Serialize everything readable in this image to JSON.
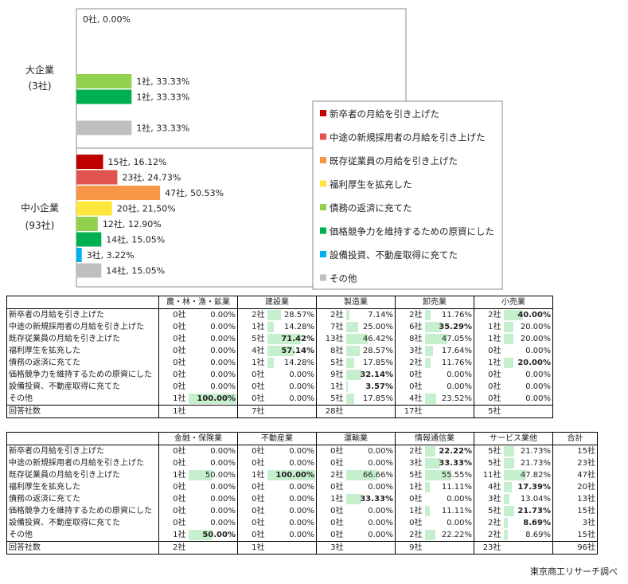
{
  "chart_data": {
    "type": "bar",
    "orientation": "horizontal",
    "series_names": [
      "新卒者の月給を引き上げた",
      "中途の新規採用者の月給を引き上げた",
      "既存従業員の月給を引き上げた",
      "福利厚生を拡充した",
      "債務の返済に充てた",
      "価格競争力を維持するための原資にした",
      "設備投資、不動産取得に充てた",
      "その他"
    ],
    "colors": [
      "#c00000",
      "#e0534e",
      "#f79646",
      "#ffe63c",
      "#92d050",
      "#00b050",
      "#00b0f0",
      "#bfbfbf"
    ],
    "legend_position": "right",
    "xlim": [
      0,
      100
    ],
    "groups": [
      {
        "name": "大企業",
        "sub": "(3社)",
        "bars": [
          {
            "value": 0,
            "label": "0社, 0.00%"
          },
          null,
          null,
          null,
          {
            "value": 33.33,
            "label": "1社, 33.33%"
          },
          {
            "value": 33.33,
            "label": "1社, 33.33%"
          },
          null,
          {
            "value": 33.33,
            "label": "1社, 33.33%"
          }
        ]
      },
      {
        "name": "中小企業",
        "sub": "(93社)",
        "bars": [
          {
            "value": 16.12,
            "label": "15社, 16.12%"
          },
          {
            "value": 24.73,
            "label": "23社, 24.73%"
          },
          {
            "value": 50.53,
            "label": "47社, 50.53%"
          },
          {
            "value": 21.5,
            "label": "20社, 21,50%"
          },
          {
            "value": 12.9,
            "label": "12社, 12.90%"
          },
          {
            "value": 15.05,
            "label": "14社, 15.05%"
          },
          {
            "value": 3.22,
            "label": "3社, 3.22%"
          },
          {
            "value": 15.05,
            "label": "14社, 15.05%"
          }
        ]
      }
    ]
  },
  "tables": [
    {
      "industries": [
        "農・林・漁・鉱業",
        "建設業",
        "製造業",
        "卸売業",
        "小売業"
      ],
      "rows": [
        {
          "label": "新卒者の月給を引き上げた",
          "cells": [
            [
              "0社",
              "0.00%"
            ],
            [
              "2社",
              "28.57%"
            ],
            [
              "2社",
              "7.14%"
            ],
            [
              "2社",
              "11.76%"
            ],
            [
              "2社",
              "40.00%"
            ]
          ]
        },
        {
          "label": "中途の新規採用者の月給を引き上げた",
          "cells": [
            [
              "0社",
              "0.00%"
            ],
            [
              "1社",
              "14.28%"
            ],
            [
              "7社",
              "25.00%"
            ],
            [
              "6社",
              "35.29%"
            ],
            [
              "1社",
              "20.00%"
            ]
          ]
        },
        {
          "label": "既存従業員の月給を引き上げた",
          "cells": [
            [
              "0社",
              "0.00%"
            ],
            [
              "5社",
              "71.42%"
            ],
            [
              "13社",
              "46.42%"
            ],
            [
              "8社",
              "47.05%"
            ],
            [
              "1社",
              "20.00%"
            ]
          ]
        },
        {
          "label": "福利厚生を拡充した",
          "cells": [
            [
              "0社",
              "0.00%"
            ],
            [
              "4社",
              "57.14%"
            ],
            [
              "8社",
              "28.57%"
            ],
            [
              "3社",
              "17.64%"
            ],
            [
              "0社",
              "0.00%"
            ]
          ]
        },
        {
          "label": "債務の返済に充てた",
          "cells": [
            [
              "0社",
              "0.00%"
            ],
            [
              "1社",
              "14.28%"
            ],
            [
              "5社",
              "17.85%"
            ],
            [
              "2社",
              "11.76%"
            ],
            [
              "1社",
              "20.00%"
            ]
          ]
        },
        {
          "label": "価格競争力を維持するための原資にした",
          "cells": [
            [
              "0社",
              "0.00%"
            ],
            [
              "0社",
              "0.00%"
            ],
            [
              "9社",
              "32.14%"
            ],
            [
              "0社",
              "0.00%"
            ],
            [
              "0社",
              "0.00%"
            ]
          ]
        },
        {
          "label": "設備投資、不動産取得に充てた",
          "cells": [
            [
              "0社",
              "0.00%"
            ],
            [
              "0社",
              "0.00%"
            ],
            [
              "1社",
              "3.57%"
            ],
            [
              "0社",
              "0.00%"
            ],
            [
              "0社",
              "0.00%"
            ]
          ]
        },
        {
          "label": "その他",
          "cells": [
            [
              "1社",
              "100.00%"
            ],
            [
              "0社",
              "0.00%"
            ],
            [
              "5社",
              "17.85%"
            ],
            [
              "4社",
              "23.52%"
            ],
            [
              "0社",
              "0.00%"
            ]
          ]
        }
      ],
      "total_label": "回答社数",
      "totals": [
        "1社",
        "7社",
        "28社",
        "17社",
        "5社"
      ]
    },
    {
      "industries": [
        "金融・保険業",
        "不動産業",
        "運輸業",
        "情報通信業",
        "サービス業他"
      ],
      "extra_header": "合計",
      "rows": [
        {
          "label": "新卒者の月給を引き上げた",
          "cells": [
            [
              "0社",
              "0.00%"
            ],
            [
              "0社",
              "0.00%"
            ],
            [
              "0社",
              "0.00%"
            ],
            [
              "2社",
              "22.22%"
            ],
            [
              "5社",
              "21.73%"
            ]
          ],
          "extra": "15社"
        },
        {
          "label": "中途の新規採用者の月給を引き上げた",
          "cells": [
            [
              "0社",
              "0.00%"
            ],
            [
              "0社",
              "0.00%"
            ],
            [
              "0社",
              "0.00%"
            ],
            [
              "3社",
              "33.33%"
            ],
            [
              "5社",
              "21.73%"
            ]
          ],
          "extra": "23社"
        },
        {
          "label": "既存従業員の月給を引き上げた",
          "cells": [
            [
              "1社",
              "50.00%"
            ],
            [
              "1社",
              "100.00%"
            ],
            [
              "2社",
              "66.66%"
            ],
            [
              "5社",
              "55.55%"
            ],
            [
              "11社",
              "47.82%"
            ]
          ],
          "extra": "47社"
        },
        {
          "label": "福利厚生を拡充した",
          "cells": [
            [
              "0社",
              "0.00%"
            ],
            [
              "0社",
              "0.00%"
            ],
            [
              "0社",
              "0.00%"
            ],
            [
              "1社",
              "11.11%"
            ],
            [
              "4社",
              "17.39%"
            ]
          ],
          "extra": "20社"
        },
        {
          "label": "債務の返済に充てた",
          "cells": [
            [
              "0社",
              "0.00%"
            ],
            [
              "0社",
              "0.00%"
            ],
            [
              "1社",
              "33.33%"
            ],
            [
              "0社",
              "0.00%"
            ],
            [
              "3社",
              "13.04%"
            ]
          ],
          "extra": "13社"
        },
        {
          "label": "価格競争力を維持するための原資にした",
          "cells": [
            [
              "0社",
              "0.00%"
            ],
            [
              "0社",
              "0.00%"
            ],
            [
              "0社",
              "0.00%"
            ],
            [
              "1社",
              "11.11%"
            ],
            [
              "5社",
              "21.73%"
            ]
          ],
          "extra": "15社"
        },
        {
          "label": "設備投資、不動産取得に充てた",
          "cells": [
            [
              "0社",
              "0.00%"
            ],
            [
              "0社",
              "0.00%"
            ],
            [
              "0社",
              "0.00%"
            ],
            [
              "0社",
              "0.00%"
            ],
            [
              "2社",
              "8.69%"
            ]
          ],
          "extra": "3社"
        },
        {
          "label": "その他",
          "cells": [
            [
              "1社",
              "50.00%"
            ],
            [
              "0社",
              "0.00%"
            ],
            [
              "0社",
              "0.00%"
            ],
            [
              "2社",
              "22.22%"
            ],
            [
              "2社",
              "8.69%"
            ]
          ],
          "extra": "15社"
        }
      ],
      "total_label": "回答社数",
      "totals": [
        "2社",
        "1社",
        "3社",
        "9社",
        "23社"
      ],
      "extra_total": "96社"
    }
  ],
  "source": "東京商工リサーチ調べ"
}
